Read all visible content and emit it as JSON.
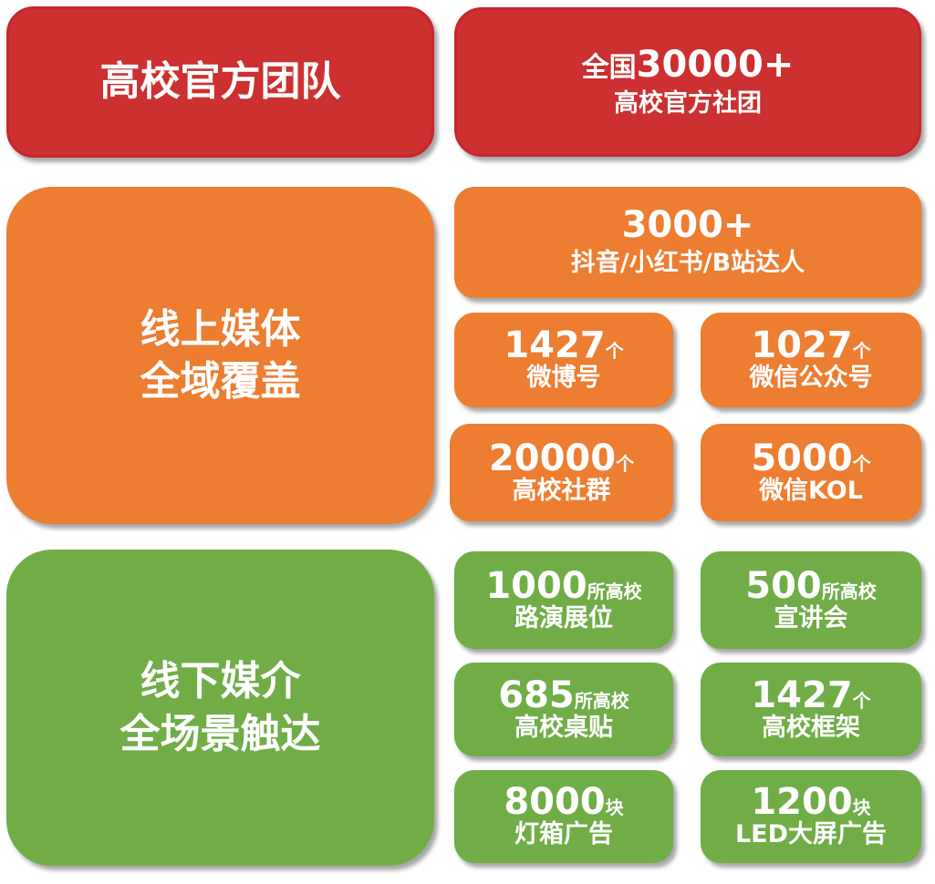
{
  "colors": {
    "red": "#cc3030",
    "orange": "#ed7d31",
    "green": "#70ad47"
  },
  "team": {
    "title": "高校官方团队",
    "number_prefix": "全国",
    "number": "30000+",
    "label": "高校官方社团"
  },
  "online": {
    "title_line1": "线上媒体",
    "title_line2": "全域覆盖",
    "items": [
      {
        "number": "3000+",
        "unit": "",
        "label": "抖音/小红书/B站达人"
      },
      {
        "number": "1427",
        "unit": "个",
        "label": "微博号"
      },
      {
        "number": "1027",
        "unit": "个",
        "label": "微信公众号"
      },
      {
        "number": "20000",
        "unit": "个",
        "label": "高校社群"
      },
      {
        "number": "5000",
        "unit": "个",
        "label": "微信KOL"
      }
    ]
  },
  "offline": {
    "title_line1": "线下媒介",
    "title_line2": "全场景触达",
    "items": [
      {
        "number": "1000",
        "unit": "所高校",
        "label": "路演展位"
      },
      {
        "number": "500",
        "unit": "所高校",
        "label": "宣讲会"
      },
      {
        "number": "685",
        "unit": "所高校",
        "label": "高校桌贴"
      },
      {
        "number": "1427",
        "unit": "个",
        "label": "高校框架"
      },
      {
        "number": "8000",
        "unit": "块",
        "label": "灯箱广告"
      },
      {
        "number": "1200",
        "unit": "块",
        "label": "LED大屏广告"
      }
    ]
  }
}
